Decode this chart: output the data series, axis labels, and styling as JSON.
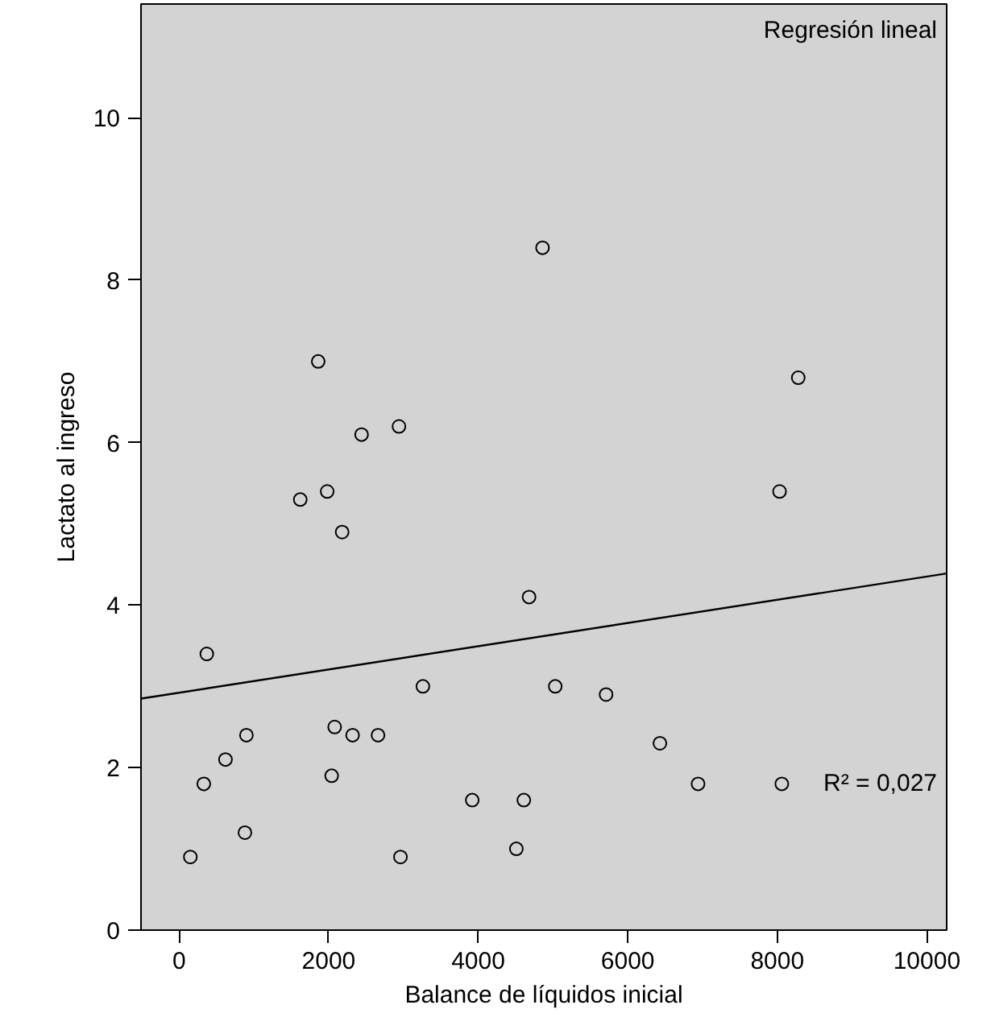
{
  "chart_data": {
    "type": "scatter",
    "xlabel": "Balance de líquidos inicial",
    "ylabel": "Lactato al ingreso",
    "annotations": [
      "Regresión lineal",
      "R² = 0,027"
    ],
    "xlim": [
      -510,
      10265
    ],
    "ylim": [
      0,
      11.4
    ],
    "xticks": [
      0,
      2000,
      4000,
      6000,
      8000,
      10000
    ],
    "yticks": [
      0,
      2,
      4,
      6,
      8,
      10
    ],
    "grid": false,
    "series": [
      {
        "marker": "circle",
        "color": "#000000",
        "x": [
          150,
          330,
          370,
          620,
          880,
          900,
          1620,
          1860,
          1980,
          2040,
          2080,
          2180,
          2320,
          2440,
          2660,
          2940,
          2960,
          3260,
          3920,
          4510,
          4610,
          4680,
          4860,
          5030,
          5710,
          6430,
          6940,
          8030,
          8060,
          8280
        ],
        "values": [
          0.9,
          1.8,
          3.4,
          2.1,
          1.2,
          2.4,
          5.3,
          7.0,
          5.4,
          1.9,
          2.5,
          4.9,
          2.4,
          6.1,
          2.4,
          6.2,
          0.9,
          3.0,
          1.6,
          1.0,
          1.6,
          4.1,
          8.4,
          3.0,
          2.9,
          2.3,
          1.8,
          5.4,
          1.8,
          6.8
        ]
      },
      {
        "type": "line",
        "color": "#000000",
        "line_style": "solid",
        "x": [
          -510,
          10265
        ],
        "values": [
          2.85,
          4.39
        ]
      }
    ]
  }
}
